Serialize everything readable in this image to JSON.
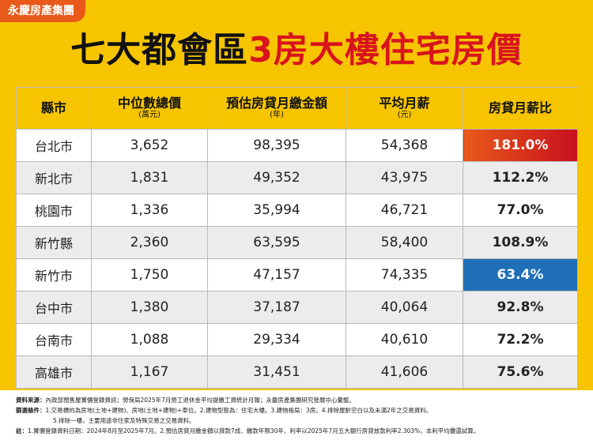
{
  "logo": "永慶房產集團",
  "title": {
    "part1": "七大都會區",
    "part2": "3房大樓住宅房價"
  },
  "table": {
    "header": [
      {
        "label": "縣市"
      },
      {
        "label": "中位數總價",
        "unit": "(萬元)"
      },
      {
        "label": "預估房貸月繳金額",
        "unit": "(年)"
      },
      {
        "label": "平均月薪",
        "unit": "(元)"
      },
      {
        "label": "房貸月薪比"
      }
    ],
    "rows": [
      [
        "台北市",
        "3,652",
        "98,395",
        "54,368",
        "181.0%"
      ],
      [
        "新北市",
        "1,831",
        "49,352",
        "43,975",
        "112.2%"
      ],
      [
        "桃園市",
        "1,336",
        "35,994",
        "46,721",
        "77.0%"
      ],
      [
        "新竹縣",
        "2,360",
        "63,595",
        "58,400",
        "108.9%"
      ],
      [
        "新竹市",
        "1,750",
        "47,157",
        "74,335",
        "63.4%"
      ],
      [
        "台中市",
        "1,380",
        "37,187",
        "40,064",
        "92.8%"
      ],
      [
        "台南市",
        "1,088",
        "29,334",
        "40,610",
        "72.2%"
      ],
      [
        "高雄市",
        "1,167",
        "31,451",
        "41,606",
        "75.6%"
      ]
    ]
  },
  "notes": {
    "source": {
      "label": "資料來源：",
      "text": "內政部預售屋實價登錄資訊；勞保局2025年7月勞工退休金平均提繳工資統計月報；永慶房產集團研究發展中心彙整。"
    },
    "filter": {
      "label": "篩選條件：",
      "text": "1.交易標的為房地(土地+建物)、房地(土地+建物)+車位。2.建物型態為：住宅大樓。3.建物格局：3房。4.排除屋齡空白以及未滿2年之交易資料。",
      "text2": "5.排除一樓，主要用途非住家及特殊交易之交易資料。"
    },
    "remark": {
      "label": "註：",
      "text": "1.實價登錄資料日期：2024年8月至2025年7月。2.預估房貸月繳金額以貸款7成、繳款年限30年、利率以2025年7月五大銀行房貸放款利率2.303%，本利平均攤還試算。"
    }
  }
}
